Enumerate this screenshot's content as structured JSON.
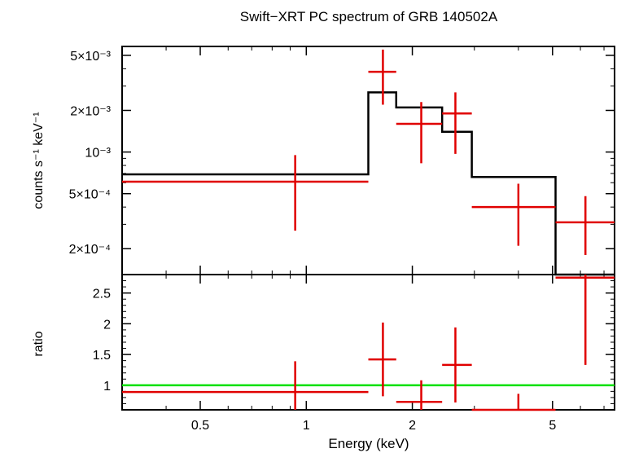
{
  "chart_data": {
    "type": "scatter",
    "title": "Swift−XRT PC spectrum of GRB 140502A",
    "xlabel": "Energy (keV)",
    "x_scale": "log",
    "xlim": [
      0.3,
      7.5
    ],
    "x_ticks": [
      {
        "value": 0.5,
        "label": "0.5"
      },
      {
        "value": 1,
        "label": "1"
      },
      {
        "value": 2,
        "label": "2"
      },
      {
        "value": 5,
        "label": "5"
      }
    ],
    "panels": [
      {
        "name": "spectrum",
        "ylabel": "counts s⁻¹ keV⁻¹",
        "y_scale": "log",
        "ylim": [
          0.00013,
          0.0058
        ],
        "y_ticks": [
          {
            "value": 0.005,
            "label": "5×10⁻³"
          },
          {
            "value": 0.002,
            "label": "2×10⁻³"
          },
          {
            "value": 0.001,
            "label": "10⁻³"
          },
          {
            "value": 0.0005,
            "label": "5×10⁻⁴"
          },
          {
            "value": 0.0002,
            "label": "2×10⁻⁴"
          }
        ],
        "data_color": "#e00000",
        "model_color": "#000000",
        "data": [
          {
            "x_lo": 0.3,
            "x_hi": 1.5,
            "x": 0.93,
            "y": 0.00061,
            "y_lo": 0.00027,
            "y_hi": 0.00095
          },
          {
            "x_lo": 1.5,
            "x_hi": 1.8,
            "x": 1.65,
            "y": 0.0038,
            "y_lo": 0.0022,
            "y_hi": 0.0055
          },
          {
            "x_lo": 1.8,
            "x_hi": 2.43,
            "x": 2.12,
            "y": 0.0016,
            "y_lo": 0.00083,
            "y_hi": 0.0023
          },
          {
            "x_lo": 2.43,
            "x_hi": 2.95,
            "x": 2.65,
            "y": 0.0019,
            "y_lo": 0.00097,
            "y_hi": 0.0027
          },
          {
            "x_lo": 2.95,
            "x_hi": 5.1,
            "x": 4.0,
            "y": 0.0004,
            "y_lo": 0.00021,
            "y_hi": 0.00059
          },
          {
            "x_lo": 5.1,
            "x_hi": 7.5,
            "x": 6.2,
            "y": 0.00031,
            "y_lo": 0.00018,
            "y_hi": 0.00048
          }
        ],
        "model": [
          {
            "x_lo": 0.3,
            "x_hi": 1.5,
            "y": 0.00069
          },
          {
            "x_lo": 1.5,
            "x_hi": 1.8,
            "y": 0.0027
          },
          {
            "x_lo": 1.8,
            "x_hi": 2.43,
            "y": 0.0021
          },
          {
            "x_lo": 2.43,
            "x_hi": 2.95,
            "y": 0.0014
          },
          {
            "x_lo": 2.95,
            "x_hi": 5.1,
            "y": 0.00066
          },
          {
            "x_lo": 5.1,
            "x_hi": 7.5,
            "y": 0.00012
          }
        ]
      },
      {
        "name": "ratio",
        "ylabel": "ratio",
        "y_scale": "linear",
        "ylim": [
          0.6,
          2.8
        ],
        "y_ticks": [
          {
            "value": 1,
            "label": "1"
          },
          {
            "value": 1.5,
            "label": "1.5"
          },
          {
            "value": 2,
            "label": "2"
          },
          {
            "value": 2.5,
            "label": "2.5"
          }
        ],
        "data_color": "#e00000",
        "reference_line": {
          "y": 1,
          "color": "#00e000"
        },
        "data": [
          {
            "x_lo": 0.3,
            "x_hi": 1.5,
            "x": 0.93,
            "y": 0.89,
            "y_lo": 0.6,
            "y_hi": 1.39
          },
          {
            "x_lo": 1.5,
            "x_hi": 1.8,
            "x": 1.65,
            "y": 1.42,
            "y_lo": 0.82,
            "y_hi": 2.02
          },
          {
            "x_lo": 1.8,
            "x_hi": 2.43,
            "x": 2.12,
            "y": 0.73,
            "y_lo": 0.6,
            "y_hi": 1.08
          },
          {
            "x_lo": 2.43,
            "x_hi": 2.95,
            "x": 2.65,
            "y": 1.33,
            "y_lo": 0.72,
            "y_hi": 1.94
          },
          {
            "x_lo": 2.95,
            "x_hi": 5.1,
            "x": 4.0,
            "y": 0.6,
            "y_lo": 0.6,
            "y_hi": 0.86
          },
          {
            "x_lo": 5.1,
            "x_hi": 7.5,
            "x": 6.2,
            "y": 2.75,
            "y_lo": 1.33,
            "y_hi": 2.8
          }
        ]
      }
    ]
  }
}
